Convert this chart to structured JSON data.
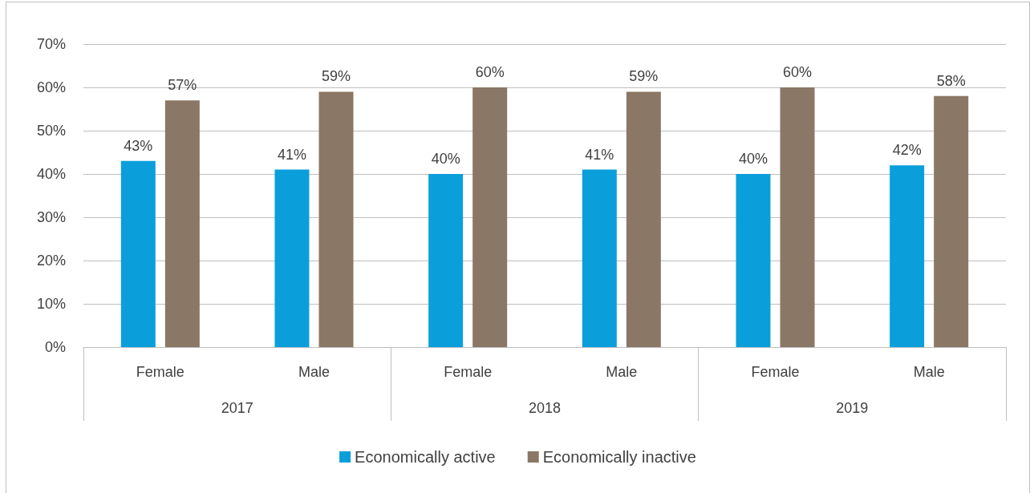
{
  "chart_data": {
    "type": "bar",
    "categories": [
      "Female",
      "Male",
      "Female",
      "Male",
      "Female",
      "Male"
    ],
    "annotations": [
      "2017",
      "2018",
      "2019"
    ],
    "series": [
      {
        "name": "Economically active",
        "color": "#0a9fdb",
        "values": [
          43,
          41,
          40,
          41,
          40,
          42
        ],
        "value_labels": [
          "43%",
          "41%",
          "40%",
          "41%",
          "40%",
          "42%"
        ]
      },
      {
        "name": "Economically inactive",
        "color": "#8b7765",
        "values": [
          57,
          59,
          60,
          59,
          60,
          58
        ],
        "value_labels": [
          "57%",
          "59%",
          "60%",
          "59%",
          "60%",
          "58%"
        ]
      }
    ],
    "ylim": [
      0,
      70
    ],
    "yticks": [
      {
        "value": 0,
        "label": "0%"
      },
      {
        "value": 10,
        "label": "10%"
      },
      {
        "value": 20,
        "label": "20%"
      },
      {
        "value": 30,
        "label": "30%"
      },
      {
        "value": 40,
        "label": "40%"
      },
      {
        "value": 50,
        "label": "50%"
      },
      {
        "value": 60,
        "label": "60%"
      },
      {
        "value": 70,
        "label": "70%"
      }
    ],
    "grid": "y",
    "legend": "bottom"
  }
}
